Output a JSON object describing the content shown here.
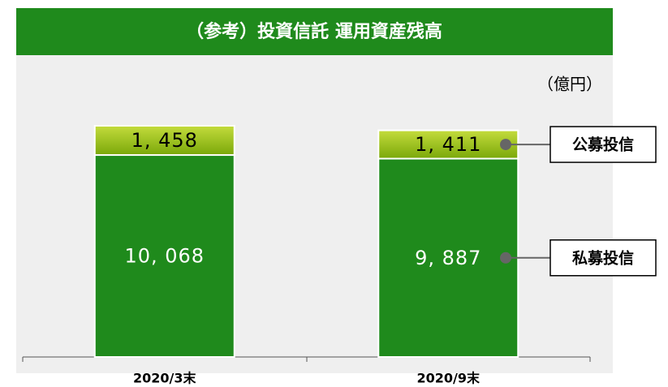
{
  "chart_data": {
    "type": "stacked_bar",
    "title": "（参考）投資信託 運用資産残高",
    "unit_label": "（億円）",
    "categories": [
      "2020/3末",
      "2020/9末"
    ],
    "series": [
      {
        "name": "私募投信",
        "color": "#1f8a1c",
        "label_color": "#ffffff",
        "values": [
          10068,
          9887
        ],
        "value_labels": [
          "10, 068",
          "9, 887"
        ]
      },
      {
        "name": "公募投信",
        "color": "#8dba12",
        "label_color": "#000000",
        "values": [
          1458,
          1411
        ],
        "value_labels": [
          "1, 458",
          "1, 411"
        ]
      }
    ]
  }
}
